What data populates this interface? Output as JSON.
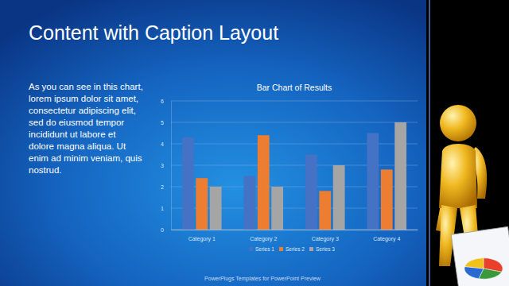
{
  "slide": {
    "title": "Content with Caption Layout",
    "caption": [
      "As you can see in this chart,",
      "lorem ipsum dolor sit amet,",
      "consectetur adipiscing elit,",
      "sed do eiusmod tempor",
      "incididunt ut labore et",
      "dolore magna aliqua. Ut",
      "enim ad minim veniam, quis",
      "nostrud."
    ],
    "footer": "PowerPlugs Templates for PowerPoint Preview"
  },
  "chart_data": {
    "type": "bar",
    "title": "Bar Chart of Results",
    "categories": [
      "Category 1",
      "Category 2",
      "Category 3",
      "Category 4"
    ],
    "series": [
      {
        "name": "Series 1",
        "color": "#4472c4",
        "values": [
          4.3,
          2.5,
          3.5,
          4.5
        ]
      },
      {
        "name": "Series 2",
        "color": "#ed7d31",
        "values": [
          2.4,
          4.4,
          1.8,
          2.8
        ]
      },
      {
        "name": "Series 3",
        "color": "#a5a5a5",
        "values": [
          2.0,
          2.0,
          3.0,
          5.0
        ]
      }
    ],
    "ylim": [
      0,
      6
    ],
    "yticks": [
      0,
      1,
      2,
      3,
      4,
      5,
      6
    ],
    "grid": true,
    "legend": "bottom"
  }
}
